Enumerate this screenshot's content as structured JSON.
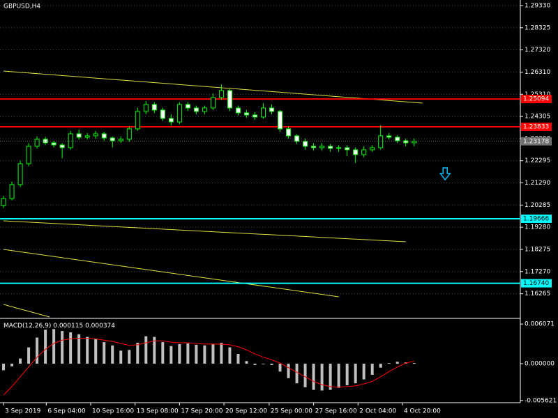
{
  "chart_data": [
    {
      "type": "candlestick",
      "title": "GBPUSD,H4",
      "x": [
        0,
        1,
        2,
        3,
        4,
        5,
        6,
        7,
        8,
        9,
        10,
        11,
        12,
        13,
        14,
        15,
        16,
        17,
        18,
        19,
        20,
        21,
        22,
        23,
        24,
        25,
        26,
        27,
        28,
        29,
        30,
        31,
        32,
        33,
        34,
        35,
        36,
        37,
        38,
        39,
        40,
        41,
        42,
        43,
        44,
        45,
        46,
        47,
        48,
        49
      ],
      "open": [
        1.20267,
        1.20582,
        1.21214,
        1.22161,
        1.22951,
        1.23267,
        1.23109,
        1.23014,
        1.22888,
        1.23519,
        1.23361,
        1.23425,
        1.23519,
        1.2333,
        1.23203,
        1.23267,
        1.2374,
        1.2453,
        1.24846,
        1.24593,
        1.24214,
        1.24056,
        1.24846,
        1.24688,
        1.2453,
        1.24688,
        1.25161,
        1.25477,
        1.24688,
        1.24467,
        1.24372,
        1.24277,
        1.24688,
        1.2453,
        1.2374,
        1.23425,
        1.23172,
        1.22951,
        1.22888,
        1.22951,
        1.22856,
        1.22888,
        1.22793,
        1.22572,
        1.22793,
        1.22888,
        1.23425,
        1.23361,
        1.23203,
        1.23109
      ],
      "high": [
        1.207,
        1.2135,
        1.223,
        1.231,
        1.234,
        1.2338,
        1.232,
        1.231,
        1.2365,
        1.237,
        1.2355,
        1.2365,
        1.236,
        1.234,
        1.234,
        1.2385,
        1.247,
        1.25,
        1.2495,
        1.247,
        1.244,
        1.2495,
        1.2495,
        1.248,
        1.248,
        1.2535,
        1.2575,
        1.2555,
        1.248,
        1.246,
        1.245,
        1.249,
        1.2485,
        1.246,
        1.2385,
        1.235,
        1.233,
        1.231,
        1.231,
        1.2305,
        1.23,
        1.23,
        1.229,
        1.2295,
        1.23,
        1.239,
        1.2355,
        1.2345,
        1.233,
        1.233
      ],
      "low": [
        1.2015,
        1.205,
        1.211,
        1.2205,
        1.2285,
        1.23,
        1.229,
        1.224,
        1.228,
        1.2325,
        1.2325,
        1.233,
        1.232,
        1.229,
        1.231,
        1.2315,
        1.2365,
        1.244,
        1.2445,
        1.241,
        1.239,
        1.2395,
        1.2455,
        1.244,
        1.244,
        1.246,
        1.2505,
        1.2455,
        1.2435,
        1.2425,
        1.2415,
        1.242,
        1.244,
        1.236,
        1.233,
        1.2305,
        1.228,
        1.2275,
        1.2275,
        1.227,
        1.227,
        1.225,
        1.222,
        1.2245,
        1.227,
        1.228,
        1.2325,
        1.231,
        1.2295,
        1.2295
      ],
      "close": [
        1.20582,
        1.21214,
        1.22161,
        1.22951,
        1.23267,
        1.23109,
        1.23014,
        1.22888,
        1.23519,
        1.23361,
        1.23425,
        1.23519,
        1.2333,
        1.23203,
        1.23267,
        1.2374,
        1.2453,
        1.24846,
        1.24593,
        1.24214,
        1.24056,
        1.24846,
        1.24688,
        1.2453,
        1.24688,
        1.25161,
        1.25477,
        1.24688,
        1.24467,
        1.24372,
        1.24277,
        1.24688,
        1.2453,
        1.2374,
        1.23425,
        1.23172,
        1.22951,
        1.22888,
        1.22951,
        1.22856,
        1.22888,
        1.22793,
        1.22572,
        1.22793,
        1.22888,
        1.23425,
        1.23361,
        1.23203,
        1.23109,
        1.23178
      ],
      "up_color": "#000000",
      "down_color": "#ffffff",
      "wick_color": "#00ff00",
      "xlim": [
        -0.42,
        61.67
      ],
      "ylim": [
        1.15211,
        1.29583
      ],
      "yticks": [
        {
          "value": 1.2933,
          "label": "1.29330"
        },
        {
          "value": 1.28325,
          "label": "1.28325"
        },
        {
          "value": 1.2732,
          "label": "1.27320"
        },
        {
          "value": 1.2631,
          "label": "1.26310"
        },
        {
          "value": 1.2531,
          "label": "1.25310"
        },
        {
          "value": 1.24305,
          "label": "1.24305"
        },
        {
          "value": 1.233,
          "label": "1.23300"
        },
        {
          "value": 1.22295,
          "label": "1.22295"
        },
        {
          "value": 1.2129,
          "label": "1.21290"
        },
        {
          "value": 1.20285,
          "label": "1.20285"
        },
        {
          "value": 1.1928,
          "label": "1.19280"
        },
        {
          "value": 1.18275,
          "label": "1.18275"
        },
        {
          "value": 1.1727,
          "label": "1.17270"
        },
        {
          "value": 1.16265,
          "label": "1.16265"
        }
      ],
      "grid": true,
      "hlines": [
        {
          "value": 1.25094,
          "label": "1.25094",
          "color": "#ff0000"
        },
        {
          "value": 1.23833,
          "label": "1.23833",
          "color": "#ff0000"
        },
        {
          "value": 1.19666,
          "label": "1.19666",
          "color": "#00ffff"
        },
        {
          "value": 1.1674,
          "label": "1.16740",
          "color": "#00ffff"
        }
      ],
      "trendlines": [
        {
          "x": [
            0,
            50
          ],
          "price": [
            1.26361,
            1.24908
          ]
        },
        {
          "x": [
            0,
            48
          ],
          "price": [
            1.1957,
            1.18623
          ]
        },
        {
          "x": [
            0,
            40
          ],
          "price": [
            1.18275,
            1.16128
          ]
        },
        {
          "x": [
            0,
            5.5
          ],
          "price": [
            1.1578,
            1.15211
          ]
        }
      ],
      "trendline_color": "#e0e040",
      "arrow": {
        "x": 52.7,
        "price": 1.2159,
        "color": "#00bfff"
      }
    },
    {
      "type": "macd",
      "title": "MACD(12,26,9)",
      "xlim": [
        -0.42,
        61.67
      ],
      "ylim": [
        -0.00596,
        0.00672
      ],
      "yticks": [
        0.006071,
        {
          "value": 0,
          "label": "0.000000"
        },
        -0.005621
      ],
      "histogram": {
        "color": "#c0c0c0",
        "values": [
          -0.001,
          -0.0004,
          0.0008,
          0.0025,
          0.004,
          0.0052,
          0.0053,
          0.005,
          0.0048,
          0.0045,
          0.0041,
          0.0038,
          0.0033,
          0.0028,
          0.002,
          0.0021,
          0.0032,
          0.0042,
          0.0041,
          0.0033,
          0.0027,
          0.003,
          0.0031,
          0.0029,
          0.0028,
          0.003,
          0.0032,
          0.0025,
          0.0015,
          0.0004,
          -0.0002,
          -0.0001,
          -0.0002,
          -0.0012,
          -0.0022,
          -0.003,
          -0.0036,
          -0.004,
          -0.0041,
          -0.004,
          -0.0037,
          -0.0033,
          -0.003,
          -0.0024,
          -0.0017,
          -0.0006,
          0.0001,
          0.0003,
          0.0002,
          0.000115
        ]
      },
      "signal": {
        "color": "#ff0000",
        "values": [
          -0.0048,
          -0.0035,
          -0.002,
          -0.0005,
          0.001,
          0.0022,
          0.0031,
          0.0036,
          0.0038,
          0.0039,
          0.0039,
          0.0038,
          0.0036,
          0.0034,
          0.0031,
          0.0028,
          0.0029,
          0.0032,
          0.0035,
          0.0035,
          0.0033,
          0.0032,
          0.0032,
          0.0031,
          0.003,
          0.003,
          0.003,
          0.0029,
          0.0026,
          0.0021,
          0.0015,
          0.001,
          0.0006,
          0.0001,
          -0.0006,
          -0.0013,
          -0.002,
          -0.0027,
          -0.0032,
          -0.0035,
          -0.0036,
          -0.0035,
          -0.0034,
          -0.0031,
          -0.0027,
          -0.002,
          -0.0012,
          -0.0005,
          0.0001,
          0.000374
        ]
      },
      "xticks": [
        {
          "value": 0,
          "label": "3 Sep 2019"
        },
        {
          "value": 5.1,
          "label": "6 Sep 04:00"
        },
        {
          "value": 10.4,
          "label": "10 Sep 16:00"
        },
        {
          "value": 15.7,
          "label": "13 Sep 08:00"
        },
        {
          "value": 21,
          "label": "17 Sep 20:00"
        },
        {
          "value": 26.3,
          "label": "20 Sep 12:00"
        },
        {
          "value": 31.7,
          "label": "25 Sep 00:00"
        },
        {
          "value": 37,
          "label": "27 Sep 16:00"
        },
        {
          "value": 42.3,
          "label": "2 Oct 04:00"
        },
        {
          "value": 47.6,
          "label": "4 Oct 20:00"
        }
      ]
    }
  ]
}
